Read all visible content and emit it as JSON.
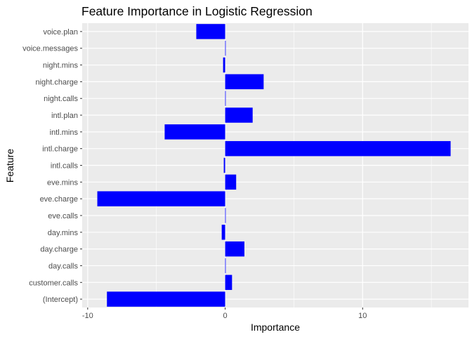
{
  "chart_data": {
    "type": "bar",
    "orientation": "horizontal",
    "title": "Feature Importance in Logistic Regression",
    "xlabel": "Importance",
    "ylabel": "Feature",
    "categories": [
      "(Intercept)",
      "customer.calls",
      "day.calls",
      "day.charge",
      "day.mins",
      "eve.calls",
      "eve.charge",
      "eve.mins",
      "intl.calls",
      "intl.charge",
      "intl.mins",
      "intl.plan",
      "night.calls",
      "night.charge",
      "night.mins",
      "voice.messages",
      "voice.plan"
    ],
    "values": [
      -8.6,
      0.5,
      0.0,
      1.4,
      -0.25,
      0.0,
      -9.3,
      0.8,
      -0.1,
      16.4,
      -4.4,
      2.0,
      0.0,
      2.8,
      -0.15,
      0.02,
      -2.1
    ],
    "xlim": [
      -10.4,
      17.7
    ],
    "xticks": [
      -10,
      0,
      10
    ],
    "xtick_labels": [
      "-10",
      "0",
      "10"
    ],
    "grid": true,
    "bar_color": "#0000ff",
    "panel_color": "#ebebeb",
    "grid_color": "#ffffff"
  }
}
